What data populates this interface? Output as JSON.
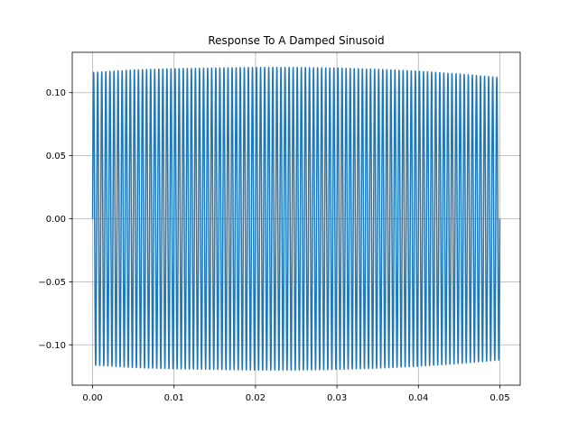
{
  "chart_data": {
    "type": "line",
    "title": "Response To A Damped Sinusoid",
    "xlabel": "",
    "ylabel": "",
    "xlim": [
      -0.0025,
      0.0525
    ],
    "ylim": [
      -0.132,
      0.132
    ],
    "x_ticks": [
      0.0,
      0.01,
      0.02,
      0.03,
      0.04,
      0.05
    ],
    "x_tick_labels": [
      "0.00",
      "0.01",
      "0.02",
      "0.03",
      "0.04",
      "0.05"
    ],
    "y_ticks": [
      -0.1,
      -0.05,
      0.0,
      0.05,
      0.1
    ],
    "y_tick_labels": [
      "−0.10",
      "−0.05",
      "0.00",
      "0.05",
      "0.10"
    ],
    "grid": true,
    "legend": "none",
    "series": [
      {
        "color": "#1f77b4",
        "cycles": 100,
        "x_start": 0.0,
        "x_end": 0.05,
        "envelope": {
          "x": [
            0.0,
            0.005,
            0.01,
            0.015,
            0.02,
            0.025,
            0.03,
            0.035,
            0.04,
            0.045,
            0.05
          ],
          "amplitude": [
            0.116,
            0.118,
            0.119,
            0.1195,
            0.12,
            0.12,
            0.1195,
            0.1185,
            0.117,
            0.1148,
            0.112
          ]
        }
      }
    ]
  }
}
